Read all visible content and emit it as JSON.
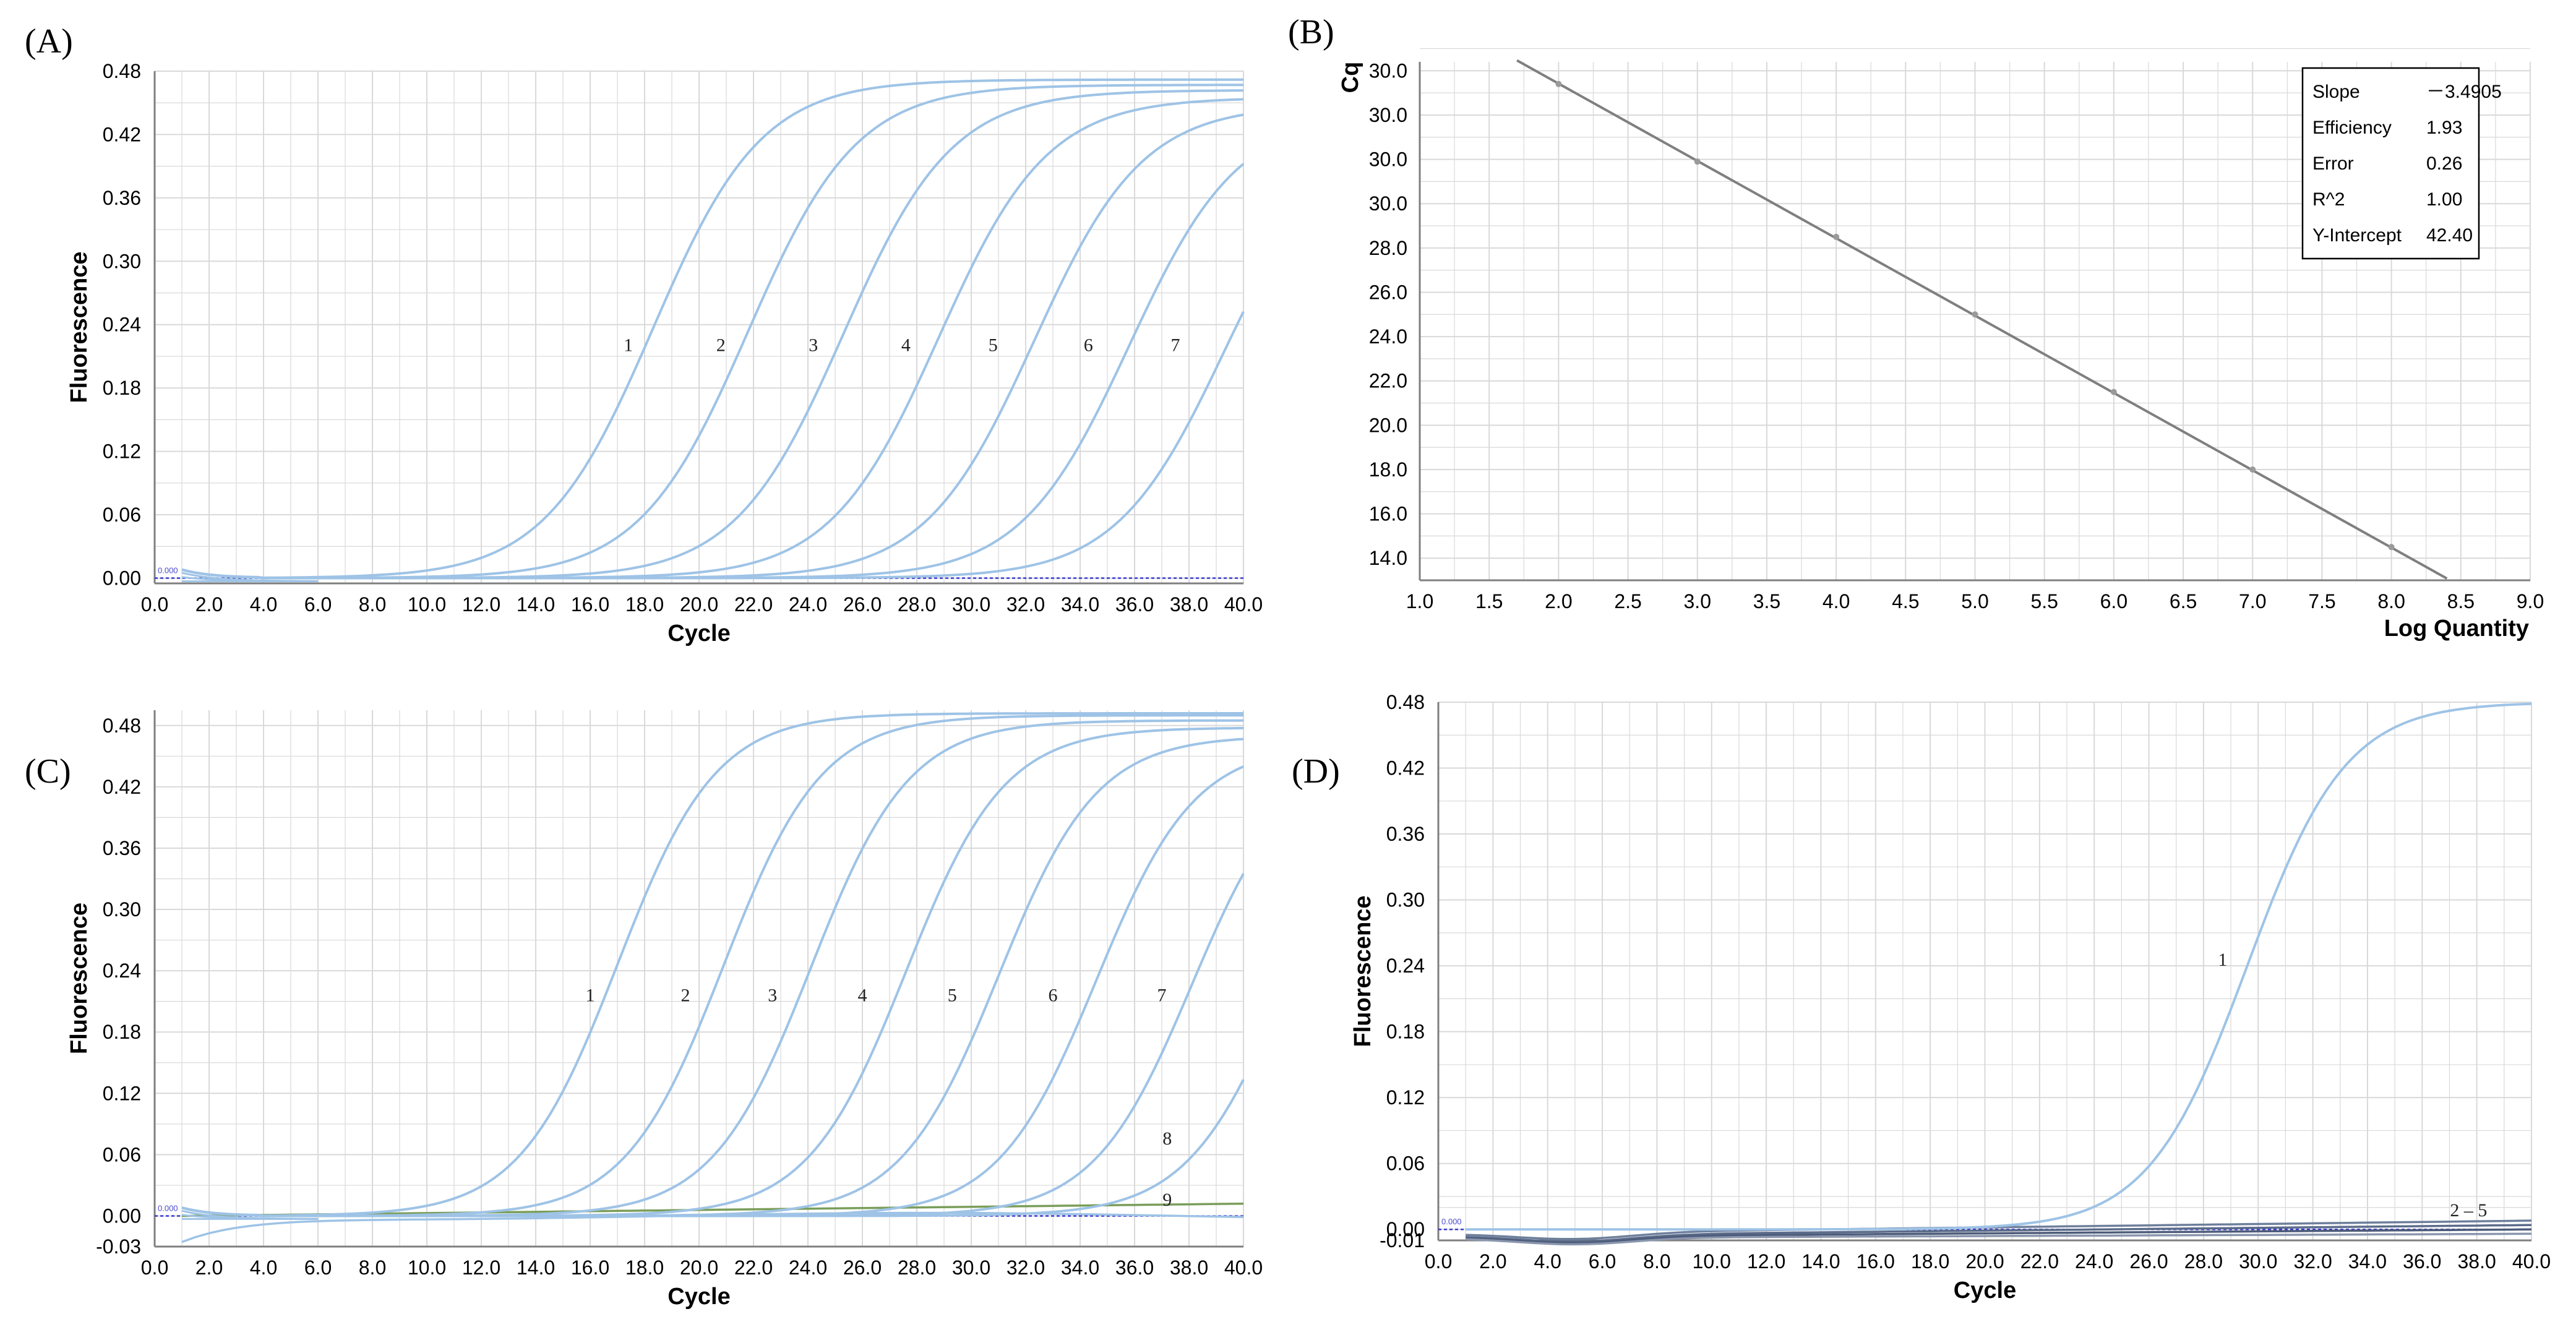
{
  "chart_data": [
    {
      "panel": "(A)",
      "type": "line",
      "xlabel": "Cycle",
      "ylabel": "Fluorescence",
      "xlim": [
        0,
        40
      ],
      "ylim": [
        -0.005,
        0.48
      ],
      "xticks": [
        "0.0",
        "2.0",
        "4.0",
        "6.0",
        "8.0",
        "10.0",
        "12.0",
        "14.0",
        "16.0",
        "18.0",
        "20.0",
        "22.0",
        "24.0",
        "26.0",
        "28.0",
        "30.0",
        "32.0",
        "34.0",
        "36.0",
        "38.0",
        "40.0"
      ],
      "yticks": [
        "0.00",
        "0.06",
        "0.12",
        "0.18",
        "0.24",
        "0.30",
        "0.36",
        "0.42",
        "0.48"
      ],
      "grid": true,
      "threshold_label": "0.000",
      "curve_labels": [
        "1",
        "2",
        "3",
        "4",
        "5",
        "6",
        "7"
      ],
      "series_params": [
        {
          "label": "1",
          "midpoint": 18.3,
          "slope": 1.05,
          "plateau": 0.472
        },
        {
          "label": "2",
          "midpoint": 21.8,
          "slope": 1.05,
          "plateau": 0.467
        },
        {
          "label": "3",
          "midpoint": 25.3,
          "slope": 1.05,
          "plateau": 0.462
        },
        {
          "label": "4",
          "midpoint": 28.8,
          "slope": 1.05,
          "plateau": 0.455
        },
        {
          "label": "5",
          "midpoint": 32.3,
          "slope": 1.05,
          "plateau": 0.448
        },
        {
          "label": "6",
          "midpoint": 35.8,
          "slope": 1.05,
          "plateau": 0.44
        },
        {
          "label": "7",
          "midpoint": 39.3,
          "slope": 1.05,
          "plateau": 0.43
        }
      ]
    },
    {
      "panel": "(B)",
      "type": "scatter",
      "xlabel": "Log Quantity",
      "ylabel": "Cq",
      "xlim": [
        1.0,
        9.0
      ],
      "xticks": [
        "1.0",
        "1.5",
        "2.0",
        "2.5",
        "3.0",
        "3.5",
        "4.0",
        "4.5",
        "5.0",
        "5.5",
        "6.0",
        "6.5",
        "7.0",
        "7.5",
        "8.0",
        "8.5",
        "9.0"
      ],
      "yticks": [
        "14.0",
        "16.0",
        "18.0",
        "20.0",
        "22.0",
        "24.0",
        "26.0",
        "28.0",
        "30.0",
        "30.0",
        "30.0",
        "30.0"
      ],
      "grid": true,
      "points": [
        {
          "x": 2.0,
          "y": 35.4
        },
        {
          "x": 3.0,
          "y": 31.9
        },
        {
          "x": 4.0,
          "y": 28.5
        },
        {
          "x": 5.0,
          "y": 25.0
        },
        {
          "x": 6.0,
          "y": 21.5
        },
        {
          "x": 7.0,
          "y": 18.0
        },
        {
          "x": 8.0,
          "y": 14.5
        }
      ],
      "fit": {
        "slope": -3.4905,
        "intercept": 42.4
      },
      "stats": [
        {
          "key": "Slope",
          "value": "－3.4905"
        },
        {
          "key": "Efficiency",
          "value": "1.93"
        },
        {
          "key": "Error",
          "value": "0.26"
        },
        {
          "key": "R^2",
          "value": "1.00"
        },
        {
          "key": "Y-Intercept",
          "value": "42.40"
        }
      ]
    },
    {
      "panel": "(C)",
      "type": "line",
      "xlabel": "Cycle",
      "ylabel": "Fluorescence",
      "xlim": [
        0,
        40
      ],
      "ylim": [
        -0.03,
        0.495
      ],
      "xticks": [
        "0.0",
        "2.0",
        "4.0",
        "6.0",
        "8.0",
        "10.0",
        "12.0",
        "14.0",
        "16.0",
        "18.0",
        "20.0",
        "22.0",
        "24.0",
        "26.0",
        "28.0",
        "30.0",
        "32.0",
        "34.0",
        "36.0",
        "38.0",
        "40.0"
      ],
      "yticks": [
        "-0.03",
        "0.00",
        "0.06",
        "0.12",
        "0.18",
        "0.24",
        "0.30",
        "0.36",
        "0.42",
        "0.48"
      ],
      "grid": true,
      "threshold_label": "0.000",
      "curve_labels": [
        "1",
        "2",
        "3",
        "4",
        "5",
        "6",
        "7",
        "8",
        "9"
      ],
      "series_params": [
        {
          "label": "1",
          "midpoint": 17.0,
          "slope": 0.95,
          "plateau": 0.492
        },
        {
          "label": "2",
          "midpoint": 20.9,
          "slope": 0.95,
          "plateau": 0.49
        },
        {
          "label": "3",
          "midpoint": 24.1,
          "slope": 0.95,
          "plateau": 0.485
        },
        {
          "label": "4",
          "midpoint": 27.6,
          "slope": 0.95,
          "plateau": 0.478
        },
        {
          "label": "5",
          "midpoint": 31.0,
          "slope": 0.95,
          "plateau": 0.47
        },
        {
          "label": "6",
          "midpoint": 34.6,
          "slope": 0.95,
          "plateau": 0.462
        },
        {
          "label": "7",
          "midpoint": 38.1,
          "slope": 0.95,
          "plateau": 0.452
        },
        {
          "label": "8",
          "midpoint": 41.5,
          "slope": 0.95,
          "plateau": 0.44
        }
      ],
      "flat_series": [
        {
          "label": "9",
          "y_start": 0.0,
          "y_end": 0.012
        }
      ]
    },
    {
      "panel": "(D)",
      "type": "line",
      "xlabel": "Cycle",
      "ylabel": "Fluorescence",
      "xlim": [
        0,
        40
      ],
      "ylim": [
        -0.01,
        0.48
      ],
      "xticks": [
        "0.0",
        "2.0",
        "4.0",
        "6.0",
        "8.0",
        "10.0",
        "12.0",
        "14.0",
        "16.0",
        "18.0",
        "20.0",
        "22.0",
        "24.0",
        "26.0",
        "28.0",
        "30.0",
        "32.0",
        "34.0",
        "36.0",
        "38.0",
        "40.0"
      ],
      "yticks": [
        "-0.01",
        "0.00",
        "0.06",
        "0.12",
        "0.18",
        "0.24",
        "0.30",
        "0.36",
        "0.42",
        "0.48"
      ],
      "grid": true,
      "threshold_label": "0.000",
      "curve_labels": [
        "1",
        "2 – 5"
      ],
      "series_params": [
        {
          "label": "1",
          "midpoint": 29.6,
          "slope": 0.95,
          "plateau": 0.48
        }
      ],
      "flat_series": [
        {
          "label": "2",
          "y_start": -0.004,
          "y_end": 0.008
        },
        {
          "label": "3",
          "y_start": -0.006,
          "y_end": 0.004
        },
        {
          "label": "4",
          "y_start": -0.007,
          "y_end": 0.0
        },
        {
          "label": "5",
          "y_start": -0.008,
          "y_end": -0.004
        }
      ]
    }
  ],
  "colors": {
    "curve": "#9ec3e6",
    "grid": "#d9d9d9",
    "axis": "#7f7f7f",
    "threshold": "#3a3ad0",
    "flat_green": "#7a9e5a",
    "flat_dark": "#5b6b8a",
    "fit_line": "#7f7f7f"
  }
}
